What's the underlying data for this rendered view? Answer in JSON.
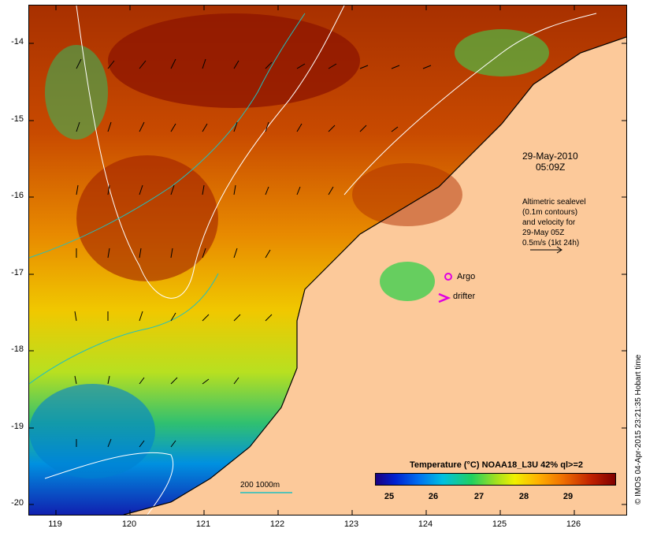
{
  "map": {
    "date_label": "29-May-2010",
    "time_label": "05:09Z",
    "legend_text": [
      "Altimetric sealevel",
      "(0.1m contours)",
      "and velocity for",
      "29-May 05Z",
      "0.5m/s (1kt 24h)"
    ],
    "argo_label": "Argo",
    "drifter_label": "drifter",
    "depth_label": "200  1000m",
    "credit": "© IMOS 04-Apr-2015 23:21:35 Hobart time",
    "lat_ticks": [
      "-14",
      "-15",
      "-16",
      "-17",
      "-18",
      "-19",
      "-20"
    ],
    "lon_ticks": [
      "119",
      "120",
      "121",
      "122",
      "123",
      "124",
      "125",
      "126"
    ],
    "colorbar": {
      "title": "Temperature (°C) NOAA18_L3U 42% ql>=2",
      "ticks": [
        "25",
        "26",
        "27",
        "28",
        "29"
      ]
    },
    "colors": {
      "land": "#fcc99a",
      "argo": "#e000e0",
      "drifter": "#e000e0",
      "contour": "#ffffff",
      "isobath": "#20c0c0"
    }
  }
}
